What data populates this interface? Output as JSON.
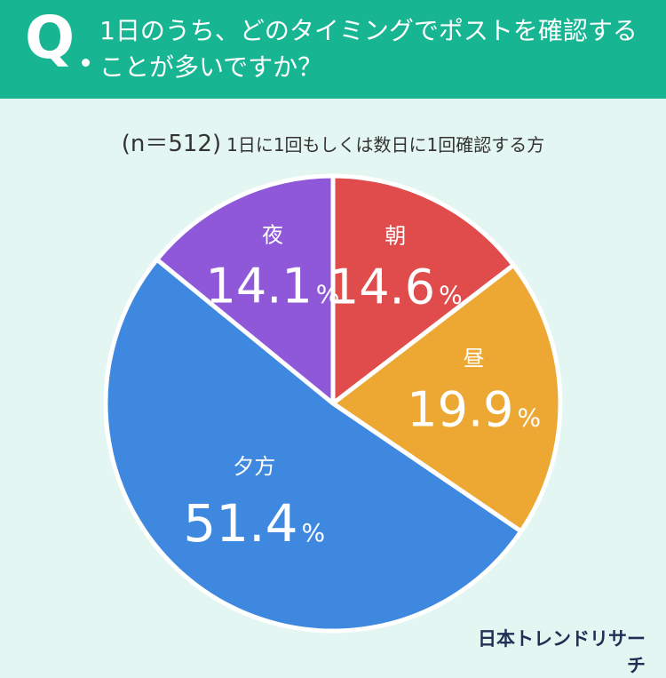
{
  "header": {
    "q_mark": "Q",
    "question_line1": "1日のうち、どのタイミングでポストを確認する",
    "question_line2": "ことが多いですか？"
  },
  "sample": {
    "n": "(n＝512)",
    "description": "1日に1回もしくは数日に1回確認する方"
  },
  "brand": "日本トレンドリサーチ",
  "colors": {
    "header": "#17b592",
    "background": "#e3f6f1",
    "朝": "#e04c4c",
    "昼": "#eca833",
    "夕方": "#3f88e0",
    "夜": "#8f58d8"
  },
  "chart_data": {
    "type": "pie",
    "title": "",
    "start": "top, clockwise",
    "slices": [
      {
        "label": "朝",
        "value": 14.6,
        "display": "14.6",
        "color": "#e04c4c"
      },
      {
        "label": "昼",
        "value": 19.9,
        "display": "19.9",
        "color": "#eca833"
      },
      {
        "label": "夕方",
        "value": 51.4,
        "display": "51.4",
        "color": "#3f88e0"
      },
      {
        "label": "夜",
        "value": 14.1,
        "display": "14.1",
        "color": "#8f58d8"
      }
    ],
    "unit": "%"
  }
}
